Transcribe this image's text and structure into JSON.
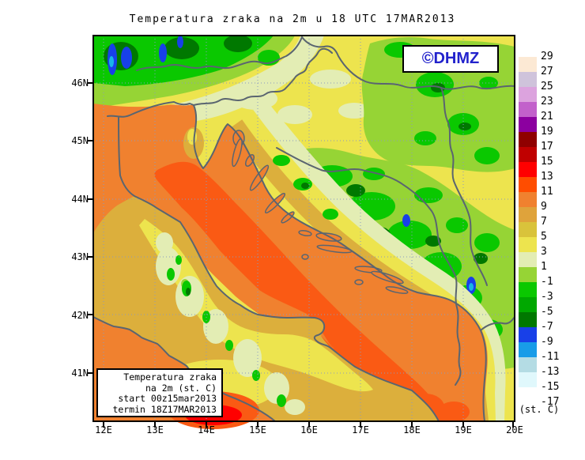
{
  "title": "Temperatura zraka na 2m u 18 UTC 17MAR2013",
  "watermark": {
    "text": "©DHMZ",
    "color": "#2222cc"
  },
  "info_box": {
    "lines": [
      "Temperatura zraka",
      "na 2m (st. C)",
      "start 00z15mar2013",
      "termin 18Z17MAR2013"
    ]
  },
  "axes": {
    "x_ticks": [
      "12E",
      "13E",
      "14E",
      "15E",
      "16E",
      "17E",
      "18E",
      "19E",
      "20E"
    ],
    "y_ticks": [
      "46N",
      "45N",
      "44N",
      "43N",
      "42N",
      "41N"
    ]
  },
  "colorbar": {
    "unit_label": "(st. C)",
    "tick_labels": [
      "29",
      "27",
      "25",
      "23",
      "21",
      "19",
      "17",
      "15",
      "13",
      "11",
      "9",
      "7",
      "5",
      "3",
      "1",
      "-1",
      "-3",
      "-5",
      "-7",
      "-9",
      "-11",
      "-13",
      "-15",
      "-17"
    ],
    "colors_top_to_bottom": [
      "#fce9d4",
      "#cfc3db",
      "#dca3de",
      "#c261cb",
      "#8c00a0",
      "#8f0000",
      "#c00000",
      "#ff0000",
      "#ff4d00",
      "#f0812f",
      "#dfa33b",
      "#d9c33b",
      "#ede44e",
      "#e3edb4",
      "#96d435",
      "#0ac800",
      "#00a800",
      "#007800",
      "#1840e8",
      "#189ce8",
      "#b4dce4",
      "#e0f8fc",
      "#ffffff"
    ]
  },
  "chart_data": {
    "type": "heatmap",
    "subtype": "filled-contour-weather-map",
    "title": "Temperatura zraka na 2m u 18 UTC 17MAR2013",
    "region": "Croatia / Adriatic",
    "lon_ticks": [
      "12E",
      "13E",
      "14E",
      "15E",
      "16E",
      "17E",
      "18E",
      "19E",
      "20E"
    ],
    "lat_ticks": [
      "46N",
      "45N",
      "44N",
      "43N",
      "42N",
      "41N"
    ],
    "contour_levels_c": [
      -17,
      -15,
      -13,
      -11,
      -9,
      -7,
      -5,
      -3,
      -1,
      1,
      3,
      5,
      7,
      9,
      11,
      13,
      15,
      17,
      19,
      21,
      23,
      25,
      27,
      29
    ],
    "fill_colors_low_to_high": [
      "#ffffff",
      "#e0f8fc",
      "#b4dce4",
      "#189ce8",
      "#1840e8",
      "#007800",
      "#00a800",
      "#0ac800",
      "#96d435",
      "#e3edb4",
      "#ede44e",
      "#d9c33b",
      "#dfa33b",
      "#f0812f",
      "#ff4d00",
      "#ff0000",
      "#c00000",
      "#8f0000",
      "#8c00a0",
      "#c261cb",
      "#dca3de",
      "#cfc3db",
      "#fce9d4"
    ],
    "units": "st. C",
    "legend_position": "right",
    "grid": "dotted, 1 degree",
    "observations": "Adriatic sea 9-13 C (orange), Tyrrhenian hotspot 13-15 C (red), Alps and Dinaric mountains below -1 C (green) with -7 to -11 C pockets (blue)"
  }
}
